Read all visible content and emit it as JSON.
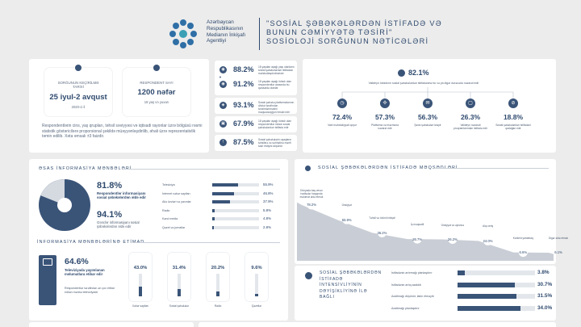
{
  "header": {
    "org_name": [
      "Azərbaycan",
      "Respublikasının",
      "Medianın İnkişafı",
      "Agentliyi"
    ],
    "title": [
      "\"SOSİAL ŞƏBƏKƏLƏRDƏN İSTİFADƏ VƏ",
      "BUNUN CƏMİYYƏTƏ TƏSİRİ\"",
      "SOSİOLOJİ SORĞUNUN NƏTİCƏLƏRİ"
    ]
  },
  "survey": {
    "date_label": "SORĞUNUN KEÇİRİLMƏ TARİXİ",
    "date_value": "25 iyul-2 avqust",
    "date_sub": "2020-ci il",
    "respondents_label": "RESPONDENT SAYI",
    "respondents_value": "1200 nəfər",
    "respondents_sub": "18 yaş və yuxarı",
    "note": "Respondentlərin cins, yaş qrupları, təhsil səviyyəsi və iqtisadi rayonlar üzrə bölgüsü rəsmi statistik göstəricilərə proporsional şəkildə müəyyənləşdirilib, əhali üzrə reprezentativlik təmin edilib. Xəta əmsalı ±3 faizdir."
  },
  "middle_stats": [
    {
      "value": "88.2%",
      "text": "18 yaşdan aşağı yaşı olanların sosial şəbəkələrdən istifadəsi məhdudlaşdırılmalıdır"
    },
    {
      "value": "91.2%",
      "text": "18 yaşdan aşağı övladı olan respondentlər arasında bu qənaətdə olanlar"
    },
    {
      "value": "93.1%",
      "text": "Sosial şəbəkə platformalarının dövlət tərəfindən tənzimlənməsini məqsədəuyğun hesab edir"
    },
    {
      "value": "67.9%",
      "text": "18 yaşdan aşağı övladı olan respondentlər övladı sosial şəbəkələrdən istifadə edir"
    },
    {
      "value": "87.5%",
      "text": "Sosial şəbəkələrin uşaqların təhsilinə və səhhətinə mənfi təsir etdiyini düşünür"
    }
  ],
  "networks": {
    "headline_value": "82.1%",
    "headline_text": "Valideyn övladının sosial şəbəkələrdən istifadəsinə bu və ya digər dərəcədə nəzarət edir",
    "items": [
      {
        "value": "72.4%",
        "text": "Vaxt məhdudiyyəti qoyur"
      },
      {
        "value": "57.3%",
        "text": "Platforma və məzmuna nəzarət edir"
      },
      {
        "value": "56.3%",
        "text": "Şəxsi şəbəkələri izləyir"
      },
      {
        "value": "26.3%",
        "text": "Valideyn nəzarəti proqramlarından istifadə edir"
      },
      {
        "value": "18.8%",
        "text": "Sosial şəbəkələrdən istifadəni qadağan edir"
      }
    ]
  },
  "sources": {
    "title": "ƏSAS İNFORMASİYA MƏNBƏLƏRİ",
    "highlight1_value": "81.8%",
    "highlight1_text": "Respondentlər informasiyanı sosial şəbəkələrdən əldə edir",
    "highlight2_value": "94.1%",
    "highlight2_text": "Gənclər informasiyanı sosial şəbəkələrdən əldə edir",
    "rows": [
      {
        "label": "Televiziya",
        "value": "55.9%",
        "pct": 55.9
      },
      {
        "label": "İnternet xəbər saytları",
        "value": "46.8%",
        "pct": 46.8
      },
      {
        "label": "Ailə üzvləri və yaxınlar",
        "value": "37.9%",
        "pct": 37.9
      },
      {
        "label": "Radio",
        "value": "5.8%",
        "pct": 5.8
      },
      {
        "label": "Kənd media",
        "value": "4.8%",
        "pct": 4.8
      },
      {
        "label": "Qəzet və jurnallar",
        "value": "2.8%",
        "pct": 2.8
      }
    ]
  },
  "trust": {
    "title": "İNFORMASİYA MƏNBƏLƏRİNƏ ETİMAD",
    "main_value": "64.6%",
    "main_text": "Televiziyada yayımlanan məlumatlara etibar edir",
    "main_sub": "Respondentlər tərəfindən ən çox etibar edilən mənbə televiziyadır",
    "columns": [
      {
        "label": "Xəbər saytları",
        "value": "43.0%",
        "pct": 43.0
      },
      {
        "label": "Sosial şəbəkələr",
        "value": "31.4%",
        "pct": 31.4
      },
      {
        "label": "Radio",
        "value": "20.2%",
        "pct": 20.2
      },
      {
        "label": "Qəzetlər",
        "value": "9.6%",
        "pct": 9.6
      }
    ]
  },
  "purposes": {
    "title": "SOSİAL ŞƏBƏKƏLƏRDƏN İSTİFADƏ MƏQSƏDLƏRİ",
    "points": [
      {
        "label": "Dünyada baş verən hadisələr haqqında məlumat əldə etmək",
        "value": "78.2%",
        "y": 78.2
      },
      {
        "label": "Ünsiyyət",
        "value": "55.9%",
        "y": 55.9
      },
      {
        "label": "Təhsil və özünü inkişaf",
        "value": "36.2%",
        "y": 36.2
      },
      {
        "label": "İş məqsədli",
        "value": "26.7%",
        "y": 26.7
      },
      {
        "label": "Ünsiyyət və əyləncə",
        "value": "26.2%",
        "y": 26.2
      },
      {
        "label": "Alış-veriş",
        "value": "24.0%",
        "y": 24.0
      },
      {
        "label": "Kontent yaratmaq",
        "value": "6.6%",
        "y": 6.6
      },
      {
        "label": "Digər əldə etmək",
        "value": "6.1%",
        "y": 6.1
      }
    ]
  },
  "intensity": {
    "title": "SOSİAL ŞƏBƏKƏLƏRDƏN İSTİFADƏ İNTENSİVLİYİNİN DƏYİŞİKLİYİNƏ İLƏ BAĞLI",
    "rows": [
      {
        "label": "İstifadənin artırmağı planlaşdırır",
        "value": "3.8%",
        "pct": 3.8
      },
      {
        "label": "İstifadənin artıq azaldıb",
        "value": "30.7%",
        "pct": 30.7
      },
      {
        "label": "Azaltmağı düşünür, lakin etməyib",
        "value": "31.5%",
        "pct": 31.5
      },
      {
        "label": "Azaltmağı planlaşdırır",
        "value": "34.0%",
        "pct": 34.0
      }
    ]
  },
  "colors": {
    "navy": "#2f4a6e",
    "bar": "#3a5478",
    "track": "#e3e7ec",
    "area": "#c9ced6",
    "background": "#ececec"
  }
}
